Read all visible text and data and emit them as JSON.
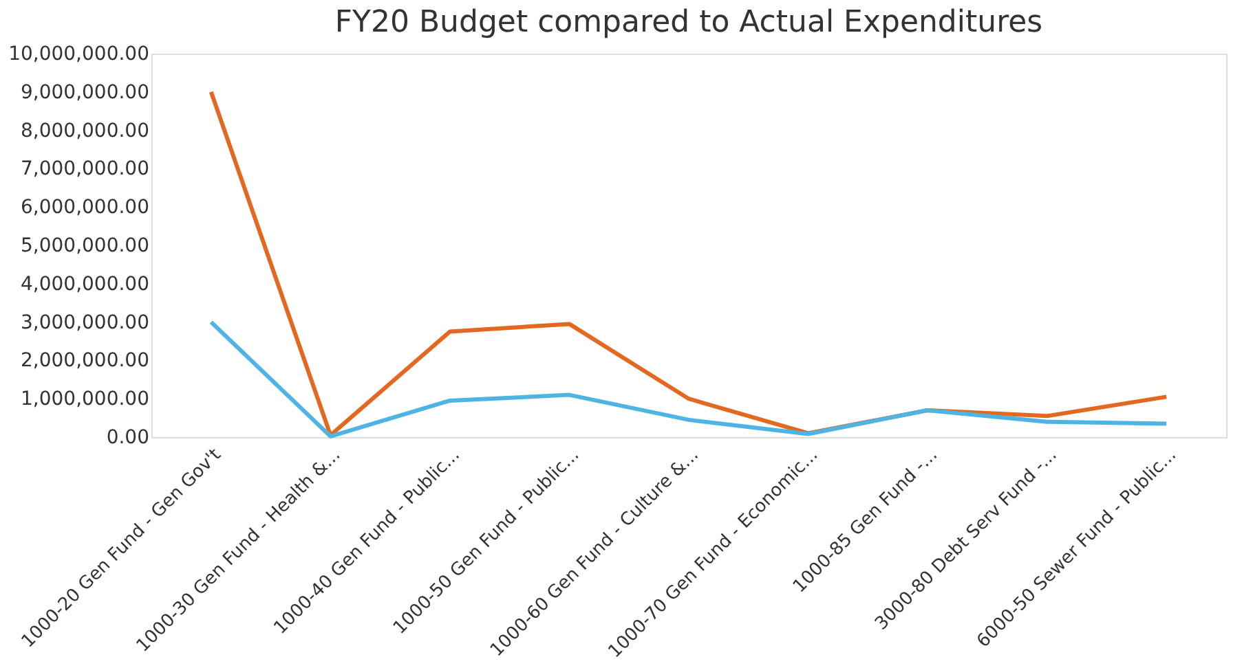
{
  "chart_data": {
    "type": "line",
    "title": "FY20 Budget compared to Actual Expenditures",
    "categories": [
      "1000-20 Gen Fund - Gen Gov't",
      "1000-30 Gen Fund - Health &...",
      "1000-40 Gen Fund - Public...",
      "1000-50 Gen Fund - Public...",
      "1000-60 Gen Fund - Culture &...",
      "1000-70 Gen Fund - Economic...",
      "1000-85 Gen Fund -...",
      "3000-80 Debt Serv Fund -...",
      "6000-50 Sewer Fund - Public..."
    ],
    "series": [
      {
        "color": "#e2691f",
        "values": [
          9000000,
          50000,
          2750000,
          2950000,
          1000000,
          100000,
          700000,
          550000,
          1050000
        ]
      },
      {
        "color": "#4db4e4",
        "values": [
          3000000,
          20000,
          950000,
          1100000,
          450000,
          80000,
          700000,
          400000,
          350000
        ]
      }
    ],
    "ylim": [
      0,
      10000000
    ],
    "yticks": [
      {
        "value": 0,
        "label": "0.00"
      },
      {
        "value": 1000000,
        "label": "1,000,000.00"
      },
      {
        "value": 2000000,
        "label": "2,000,000.00"
      },
      {
        "value": 3000000,
        "label": "3,000,000.00"
      },
      {
        "value": 4000000,
        "label": "4,000,000.00"
      },
      {
        "value": 5000000,
        "label": "5,000,000.00"
      },
      {
        "value": 6000000,
        "label": "6,000,000.00"
      },
      {
        "value": 7000000,
        "label": "7,000,000.00"
      },
      {
        "value": 8000000,
        "label": "8,000,000.00"
      },
      {
        "value": 9000000,
        "label": "9,000,000.00"
      },
      {
        "value": 10000000,
        "label": "10,000,000.00"
      }
    ],
    "grid": false,
    "legend": false,
    "marker": "none",
    "line_style": "solid"
  }
}
